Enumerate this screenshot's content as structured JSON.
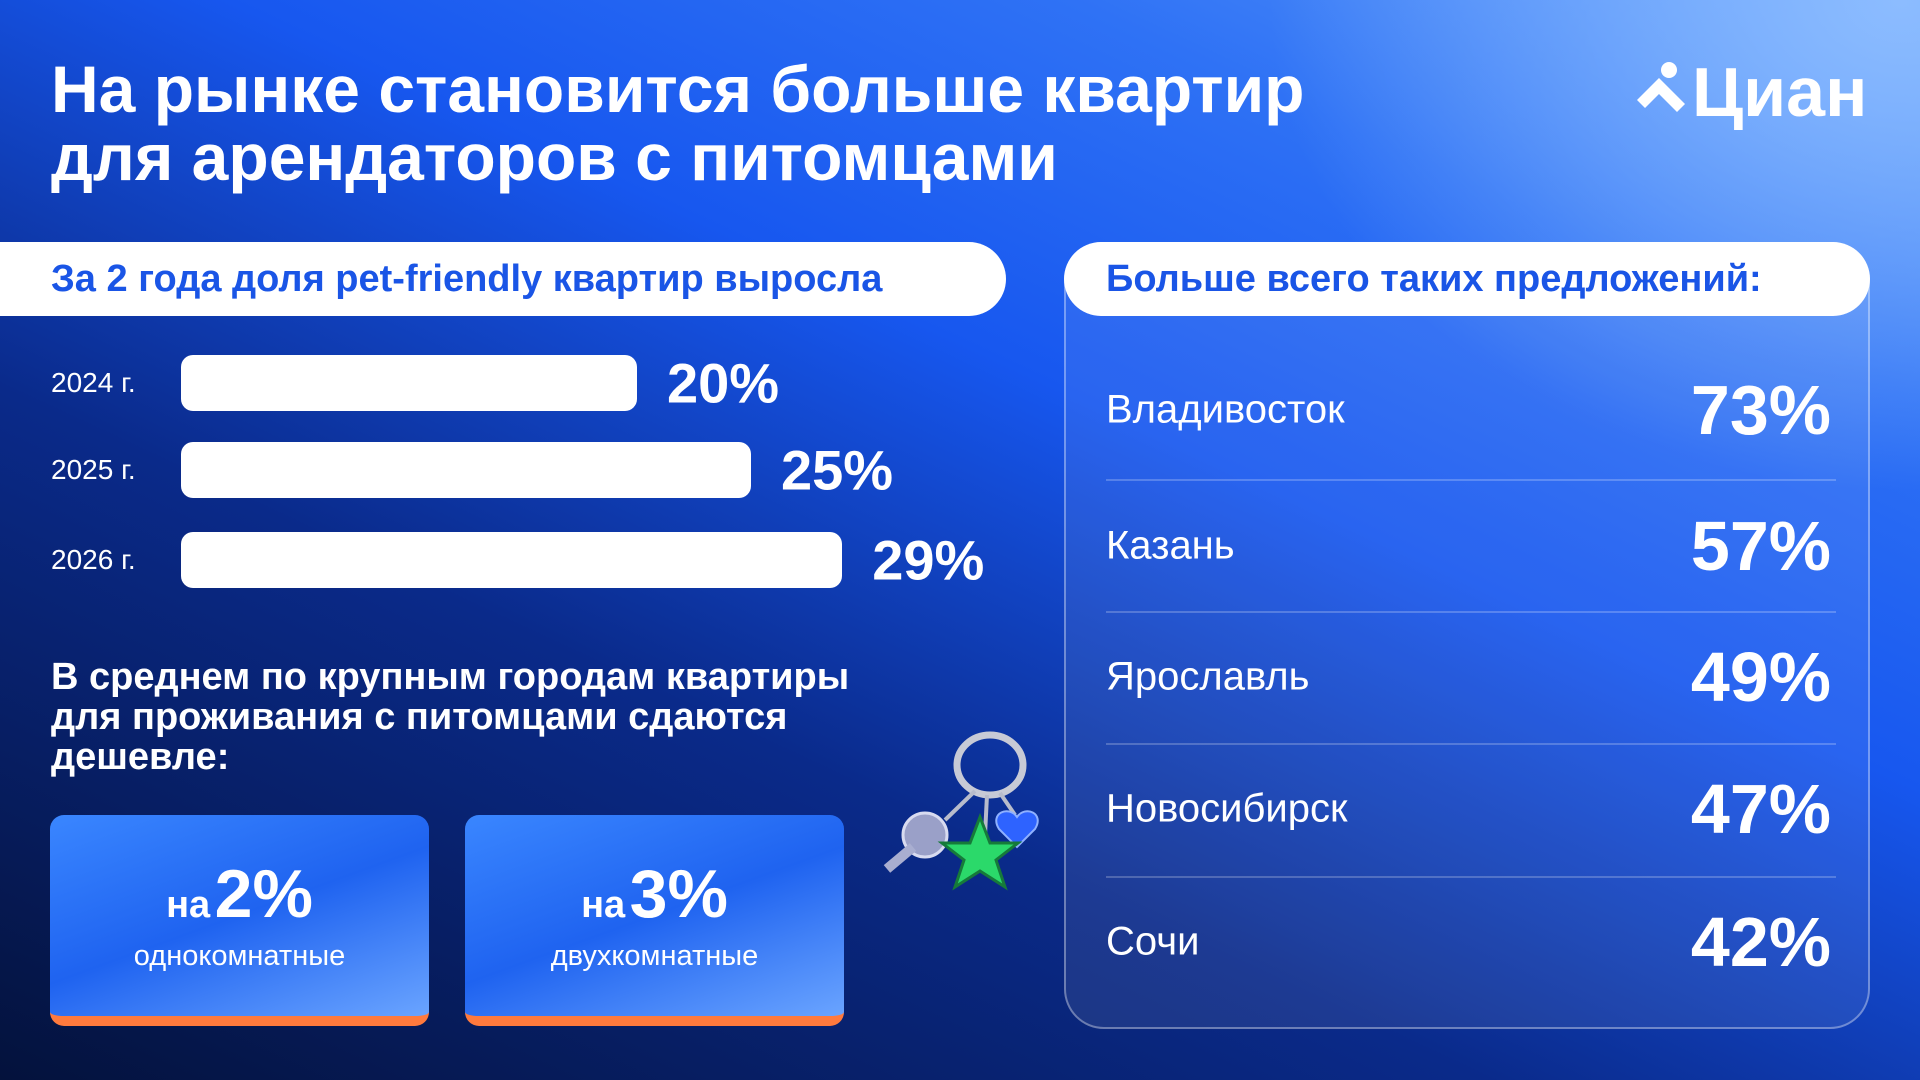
{
  "header": {
    "title_lines": [
      "На рынке становится больше квартир",
      "для арендаторов с питомцами"
    ],
    "logo": "Циан"
  },
  "chart_data": {
    "type": "bar",
    "title": "За 2 года доля pet-friendly квартир выросла",
    "categories": [
      "2024 г.",
      "2025 г.",
      "2026 г."
    ],
    "values": [
      20,
      25,
      29
    ],
    "value_labels": [
      "20%",
      "25%",
      "29%"
    ],
    "color": "#ffffff"
  },
  "note": {
    "lines": [
      "В среднем по крупным городам квартиры",
      "для проживания с питомцами сдаются",
      "дешевле:"
    ]
  },
  "cards": [
    {
      "prefix": "на",
      "value": "2%",
      "label": "однокомнатные"
    },
    {
      "prefix": "на",
      "value": "3%",
      "label": "двухкомнатные"
    }
  ],
  "cities": {
    "title": "Больше всего таких предложений:",
    "rows": [
      {
        "name": "Владивосток",
        "value": "73%"
      },
      {
        "name": "Казань",
        "value": "57%"
      },
      {
        "name": "Ярославль",
        "value": "49%"
      },
      {
        "name": "Новосибирск",
        "value": "47%"
      },
      {
        "name": "Сочи",
        "value": "42%"
      }
    ]
  }
}
